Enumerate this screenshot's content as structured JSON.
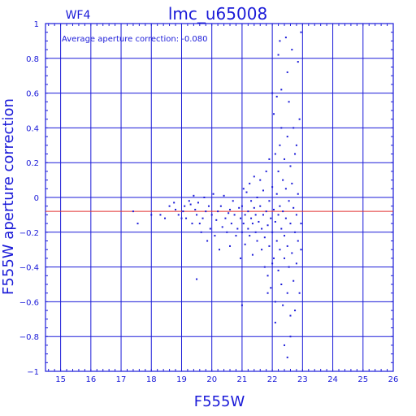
{
  "chart_data": {
    "type": "scatter",
    "chip_label": "WF4",
    "title": "lmc_u65008",
    "xlabel": "F555W",
    "ylabel": "F555W aperture correction",
    "annotation": "Average aperture correction: -0.080",
    "average_correction": -0.08,
    "xlim": [
      14.5,
      26
    ],
    "ylim": [
      -1,
      1
    ],
    "x_ticks": [
      15,
      16,
      17,
      18,
      19,
      20,
      21,
      22,
      23,
      24,
      25,
      26
    ],
    "y_ticks": [
      -1,
      -0.8,
      -0.6,
      -0.4,
      -0.2,
      0,
      0.2,
      0.4,
      0.6,
      0.8,
      1
    ],
    "grid": true,
    "colors": {
      "points": "#1a1ad8",
      "grid": "#1a1ad8",
      "average_line": "#e03030"
    },
    "series": [
      {
        "values": [
          [
            17.4,
            -0.08
          ],
          [
            17.55,
            -0.15
          ],
          [
            18.0,
            -0.1
          ],
          [
            18.3,
            -0.1
          ],
          [
            18.45,
            -0.12
          ],
          [
            18.6,
            -0.05
          ],
          [
            18.75,
            -0.03
          ],
          [
            18.8,
            -0.07
          ],
          [
            18.9,
            -0.1
          ],
          [
            19.0,
            -0.12
          ],
          [
            19.05,
            -0.08
          ],
          [
            19.1,
            -0.05
          ],
          [
            19.15,
            -0.12
          ],
          [
            19.25,
            -0.02
          ],
          [
            19.3,
            -0.04
          ],
          [
            19.35,
            -0.15
          ],
          [
            19.4,
            0.01
          ],
          [
            19.45,
            -0.07
          ],
          [
            19.5,
            -0.1
          ],
          [
            19.5,
            -0.47
          ],
          [
            19.55,
            -0.03
          ],
          [
            19.6,
            -0.15
          ],
          [
            19.65,
            -0.2
          ],
          [
            19.7,
            -0.12
          ],
          [
            19.75,
            0.0
          ],
          [
            19.8,
            -0.08
          ],
          [
            19.85,
            -0.25
          ],
          [
            19.9,
            -0.05
          ],
          [
            19.95,
            -0.18
          ],
          [
            20.0,
            -0.1
          ],
          [
            20.05,
            0.02
          ],
          [
            20.1,
            -0.22
          ],
          [
            20.15,
            -0.13
          ],
          [
            20.2,
            -0.08
          ],
          [
            20.25,
            -0.3
          ],
          [
            20.3,
            -0.05
          ],
          [
            20.35,
            -0.17
          ],
          [
            20.4,
            0.01
          ],
          [
            20.45,
            -0.12
          ],
          [
            20.5,
            -0.2
          ],
          [
            20.55,
            -0.09
          ],
          [
            20.6,
            -0.28
          ],
          [
            20.6,
            -0.07
          ],
          [
            20.65,
            -0.15
          ],
          [
            20.7,
            -0.02
          ],
          [
            20.75,
            -0.1
          ],
          [
            20.8,
            -0.22
          ],
          [
            20.85,
            -0.18
          ],
          [
            20.9,
            -0.06
          ],
          [
            20.95,
            -0.35
          ],
          [
            20.95,
            -0.12
          ],
          [
            21.0,
            -0.2
          ],
          [
            21.0,
            -0.05
          ],
          [
            21.05,
            0.05
          ],
          [
            21.05,
            -0.15
          ],
          [
            21.1,
            -0.27
          ],
          [
            21.1,
            -0.1
          ],
          [
            21.15,
            0.03
          ],
          [
            21.2,
            -0.18
          ],
          [
            21.2,
            -0.08
          ],
          [
            21.25,
            0.08
          ],
          [
            21.25,
            -0.22
          ],
          [
            21.3,
            -0.12
          ],
          [
            21.3,
            -0.02
          ],
          [
            21.35,
            -0.33
          ],
          [
            21.35,
            -0.15
          ],
          [
            21.4,
            0.12
          ],
          [
            21.4,
            -0.06
          ],
          [
            21.45,
            -0.2
          ],
          [
            21.45,
            -0.1
          ],
          [
            21.5,
            0.0
          ],
          [
            21.5,
            -0.25
          ],
          [
            21.55,
            -0.14
          ],
          [
            21.6,
            0.1
          ],
          [
            21.6,
            -0.05
          ],
          [
            21.65,
            -0.3
          ],
          [
            21.65,
            -0.18
          ],
          [
            21.7,
            0.04
          ],
          [
            21.7,
            -0.1
          ],
          [
            21.75,
            -0.23
          ],
          [
            21.75,
            -0.4
          ],
          [
            21.8,
            0.15
          ],
          [
            21.8,
            -0.08
          ],
          [
            21.85,
            -0.16
          ],
          [
            21.85,
            -0.45
          ],
          [
            21.9,
            0.22
          ],
          [
            21.9,
            -0.02
          ],
          [
            21.9,
            -0.28
          ],
          [
            21.95,
            -0.12
          ],
          [
            21.95,
            -0.52
          ],
          [
            22.0,
            0.6
          ],
          [
            22.0,
            0.06
          ],
          [
            22.0,
            -0.2
          ],
          [
            22.05,
            0.48
          ],
          [
            22.05,
            -0.07
          ],
          [
            22.05,
            -0.35
          ],
          [
            22.1,
            0.25
          ],
          [
            22.1,
            -0.14
          ],
          [
            22.1,
            -0.6
          ],
          [
            22.15,
            0.58
          ],
          [
            22.15,
            0.02
          ],
          [
            22.15,
            -0.25
          ],
          [
            22.2,
            0.15
          ],
          [
            22.2,
            -0.1
          ],
          [
            22.2,
            -0.42
          ],
          [
            22.25,
            0.9
          ],
          [
            22.25,
            0.3
          ],
          [
            22.25,
            -0.05
          ],
          [
            22.25,
            -0.3
          ],
          [
            22.3,
            0.4
          ],
          [
            22.3,
            -0.18
          ],
          [
            22.3,
            -0.5
          ],
          [
            22.35,
            0.1
          ],
          [
            22.35,
            -0.08
          ],
          [
            22.35,
            -0.62
          ],
          [
            22.4,
            0.22
          ],
          [
            22.4,
            -0.22
          ],
          [
            22.4,
            -0.35
          ],
          [
            22.45,
            0.92
          ],
          [
            22.45,
            0.05
          ],
          [
            22.45,
            -0.12
          ],
          [
            22.5,
            0.35
          ],
          [
            22.5,
            -0.28
          ],
          [
            22.5,
            -0.55
          ],
          [
            22.55,
            0.55
          ],
          [
            22.55,
            -0.02
          ],
          [
            22.55,
            -0.4
          ],
          [
            22.6,
            0.18
          ],
          [
            22.6,
            -0.15
          ],
          [
            22.6,
            -0.8
          ],
          [
            22.65,
            0.85
          ],
          [
            22.65,
            0.08
          ],
          [
            22.65,
            -0.32
          ],
          [
            22.7,
            0.4
          ],
          [
            22.7,
            -0.06
          ],
          [
            22.7,
            -0.48
          ],
          [
            22.75,
            0.25
          ],
          [
            22.75,
            -0.2
          ],
          [
            22.75,
            -0.65
          ],
          [
            22.8,
            0.3
          ],
          [
            22.8,
            -0.1
          ],
          [
            22.8,
            -0.38
          ],
          [
            22.85,
            0.78
          ],
          [
            22.85,
            0.02
          ],
          [
            22.85,
            -0.25
          ],
          [
            22.9,
            0.45
          ],
          [
            22.9,
            -0.55
          ],
          [
            22.95,
            0.95
          ],
          [
            22.95,
            -0.15
          ],
          [
            22.95,
            -0.3
          ],
          [
            22.5,
            0.72
          ],
          [
            22.2,
            0.82
          ],
          [
            22.1,
            -0.72
          ],
          [
            22.4,
            -0.85
          ],
          [
            22.5,
            -0.92
          ],
          [
            21.0,
            -0.62
          ],
          [
            22.3,
            0.62
          ],
          [
            22.0,
            -0.38
          ],
          [
            21.85,
            -0.55
          ],
          [
            22.6,
            -0.68
          ]
        ]
      }
    ]
  }
}
